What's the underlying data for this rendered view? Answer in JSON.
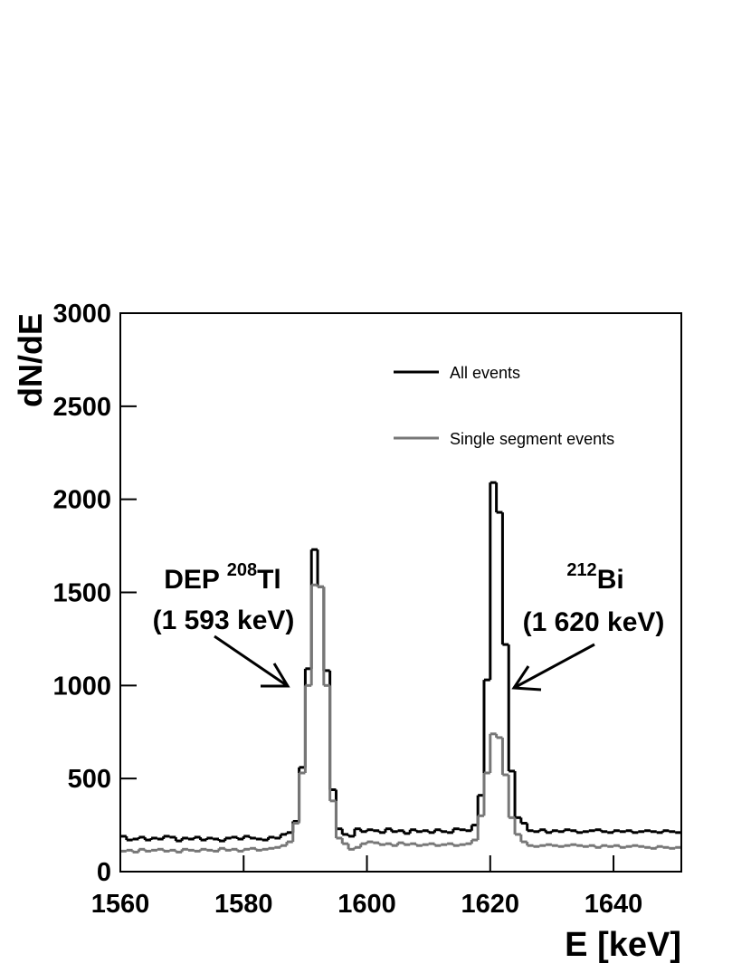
{
  "chart_data": {
    "type": "histogram",
    "xlabel": "E [keV]",
    "ylabel": "dN/dE",
    "xlim": [
      1560,
      1651
    ],
    "ylim": [
      0,
      3000
    ],
    "xticks": [
      1560,
      1580,
      1600,
      1620,
      1640
    ],
    "yticks": [
      0,
      500,
      1000,
      1500,
      2000,
      2500,
      3000
    ],
    "legend": "top-right",
    "bins": [
      1560,
      1561,
      1562,
      1563,
      1564,
      1565,
      1566,
      1567,
      1568,
      1569,
      1570,
      1571,
      1572,
      1573,
      1574,
      1575,
      1576,
      1577,
      1578,
      1579,
      1580,
      1581,
      1582,
      1583,
      1584,
      1585,
      1586,
      1587,
      1588,
      1589,
      1590,
      1591,
      1592,
      1593,
      1594,
      1595,
      1596,
      1597,
      1598,
      1599,
      1600,
      1601,
      1602,
      1603,
      1604,
      1605,
      1606,
      1607,
      1608,
      1609,
      1610,
      1611,
      1612,
      1613,
      1614,
      1615,
      1616,
      1617,
      1618,
      1619,
      1620,
      1621,
      1622,
      1623,
      1624,
      1625,
      1626,
      1627,
      1628,
      1629,
      1630,
      1631,
      1632,
      1633,
      1634,
      1635,
      1636,
      1637,
      1638,
      1639,
      1640,
      1641,
      1642,
      1643,
      1644,
      1645,
      1646,
      1647,
      1648,
      1649,
      1650,
      1651
    ],
    "series": [
      {
        "name": "All events",
        "color": "#000000",
        "values": [
          190,
          170,
          175,
          185,
          170,
          180,
          175,
          190,
          185,
          165,
          180,
          175,
          185,
          170,
          180,
          175,
          165,
          180,
          185,
          175,
          190,
          180,
          175,
          170,
          185,
          180,
          200,
          210,
          270,
          560,
          1090,
          1730,
          1530,
          1080,
          440,
          230,
          200,
          190,
          230,
          215,
          225,
          220,
          210,
          230,
          215,
          220,
          205,
          225,
          215,
          220,
          210,
          225,
          215,
          210,
          230,
          225,
          220,
          250,
          410,
          1030,
          2090,
          1930,
          1220,
          540,
          290,
          260,
          220,
          215,
          225,
          210,
          220,
          215,
          225,
          220,
          210,
          215,
          220,
          225,
          215,
          210,
          220,
          215,
          220,
          210,
          215,
          220,
          215,
          210,
          220,
          215,
          210
        ]
      },
      {
        "name": "Single segment events",
        "color": "#777777",
        "values": [
          110,
          115,
          105,
          120,
          110,
          115,
          120,
          110,
          115,
          105,
          120,
          115,
          110,
          120,
          115,
          110,
          125,
          115,
          120,
          110,
          120,
          125,
          115,
          120,
          125,
          130,
          140,
          160,
          260,
          530,
          1000,
          1540,
          1530,
          1000,
          380,
          180,
          150,
          120,
          130,
          150,
          160,
          155,
          145,
          150,
          140,
          155,
          145,
          150,
          140,
          145,
          150,
          140,
          145,
          150,
          140,
          145,
          150,
          170,
          300,
          530,
          740,
          720,
          520,
          290,
          200,
          160,
          140,
          135,
          140,
          145,
          140,
          135,
          140,
          145,
          140,
          135,
          140,
          130,
          140,
          135,
          140,
          130,
          135,
          140,
          135,
          130,
          125,
          135,
          130,
          125,
          130
        ]
      }
    ],
    "annotations": [
      {
        "text": "DEP ",
        "sup": "208",
        "element": "Tl",
        "energy": "(1 593 keV)"
      },
      {
        "text": "",
        "sup": "212",
        "element": "Bi",
        "energy": "(1 620 keV)"
      }
    ]
  }
}
